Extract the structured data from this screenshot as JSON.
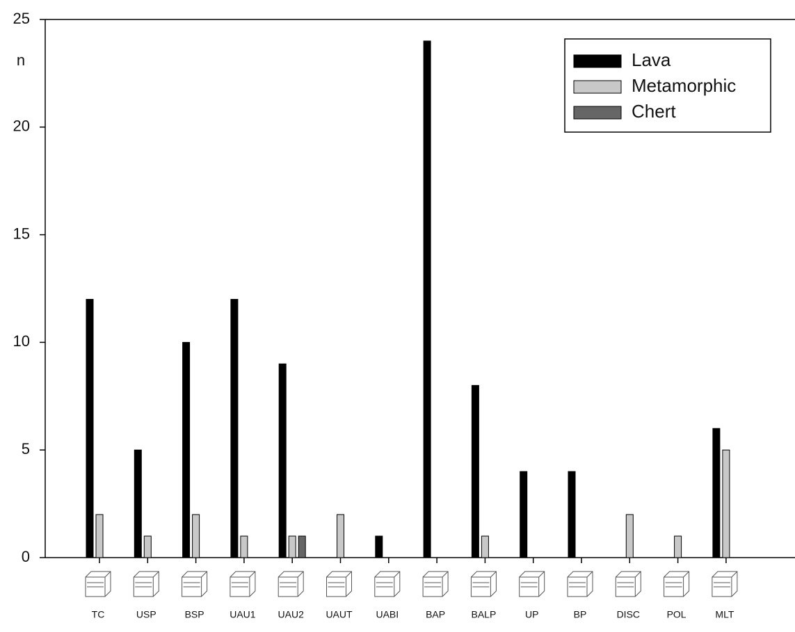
{
  "chart_data": {
    "type": "bar",
    "y_label": "n",
    "categories": [
      "TC",
      "USP",
      "BSP",
      "UAU1",
      "UAU2",
      "UAUT",
      "UABI",
      "BAP",
      "BALP",
      "UP",
      "BP",
      "DISC",
      "POL",
      "MLT"
    ],
    "series": [
      {
        "name": "Lava",
        "color": "#000000",
        "values": [
          12,
          5,
          10,
          12,
          9,
          0,
          1,
          24,
          8,
          4,
          4,
          0,
          0,
          6
        ]
      },
      {
        "name": "Metamorphic",
        "color": "#c8c8c8",
        "values": [
          2,
          1,
          2,
          1,
          1,
          2,
          0,
          0,
          1,
          0,
          0,
          2,
          1,
          5
        ]
      },
      {
        "name": "Chert",
        "color": "#666666",
        "values": [
          0,
          0,
          0,
          0,
          1,
          0,
          0,
          0,
          0,
          0,
          0,
          0,
          0,
          0
        ]
      }
    ],
    "ylim": [
      0,
      25
    ],
    "yticks": [
      0,
      5,
      10,
      15,
      20,
      25
    ],
    "legend": "upper-right",
    "grid": false
  }
}
